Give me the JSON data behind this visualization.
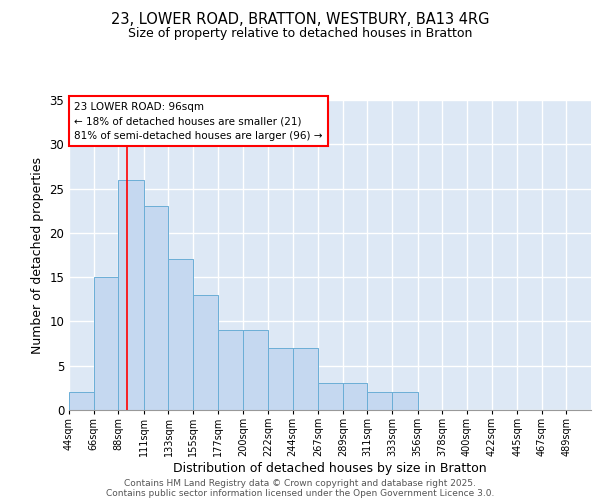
{
  "title_line1": "23, LOWER ROAD, BRATTON, WESTBURY, BA13 4RG",
  "title_line2": "Size of property relative to detached houses in Bratton",
  "xlabel": "Distribution of detached houses by size in Bratton",
  "ylabel": "Number of detached properties",
  "bar_values": [
    2,
    15,
    26,
    23,
    17,
    13,
    9,
    9,
    7,
    7,
    3,
    3,
    2,
    2,
    0,
    0,
    0,
    0,
    0,
    0,
    0
  ],
  "bin_edges": [
    44,
    66,
    88,
    111,
    133,
    155,
    177,
    200,
    222,
    244,
    267,
    289,
    311,
    333,
    356,
    378,
    400,
    422,
    445,
    467,
    489,
    511
  ],
  "x_labels": [
    "44sqm",
    "66sqm",
    "88sqm",
    "111sqm",
    "133sqm",
    "155sqm",
    "177sqm",
    "200sqm",
    "222sqm",
    "244sqm",
    "267sqm",
    "289sqm",
    "311sqm",
    "333sqm",
    "356sqm",
    "378sqm",
    "400sqm",
    "422sqm",
    "445sqm",
    "467sqm",
    "489sqm"
  ],
  "bar_color": "#c5d8f0",
  "bar_edge_color": "#6baed6",
  "background_color": "#dde8f5",
  "grid_color": "#ffffff",
  "red_line_x": 96,
  "annotation_text": "23 LOWER ROAD: 96sqm\n← 18% of detached houses are smaller (21)\n81% of semi-detached houses are larger (96) →",
  "footer_line1": "Contains HM Land Registry data © Crown copyright and database right 2025.",
  "footer_line2": "Contains public sector information licensed under the Open Government Licence 3.0.",
  "ylim": [
    0,
    35
  ],
  "yticks": [
    0,
    5,
    10,
    15,
    20,
    25,
    30,
    35
  ]
}
